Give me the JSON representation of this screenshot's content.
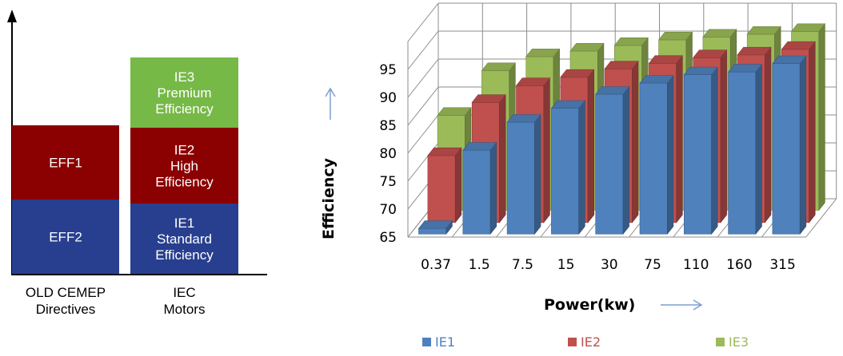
{
  "left_diagram": {
    "columns": [
      {
        "label_lines": [
          "OLD CEMEP",
          "Directives"
        ],
        "boxes": [
          {
            "lines": [
              "EFF2"
            ],
            "color": "#283f8f"
          },
          {
            "lines": [
              "EFF1"
            ],
            "color": "#8b0000"
          }
        ]
      },
      {
        "label_lines": [
          "IEC",
          "Motors"
        ],
        "boxes": [
          {
            "lines": [
              "IE1",
              "Standard",
              "Efficiency"
            ],
            "color": "#283f8f"
          },
          {
            "lines": [
              "IE2",
              "High",
              "Efficiency"
            ],
            "color": "#8b0000"
          },
          {
            "lines": [
              "IE3",
              "Premium",
              "Efficiency"
            ],
            "color": "#76b947"
          }
        ]
      }
    ]
  },
  "chart_data": {
    "type": "bar",
    "title": "",
    "xlabel": "Power(kw)",
    "ylabel": "Efficiency",
    "categories": [
      "0.37",
      "1.5",
      "7.5",
      "15",
      "30",
      "75",
      "110",
      "160",
      "315"
    ],
    "y_ticks": [
      "65",
      "70",
      "75",
      "80",
      "85",
      "90",
      "95"
    ],
    "ylim": [
      65,
      95
    ],
    "grid": true,
    "legend_position": "bottom",
    "series": [
      {
        "name": "IE1",
        "color": "#4f81bd",
        "values": [
          66,
          80,
          85,
          87.5,
          90,
          92,
          93.5,
          94,
          95.5
        ]
      },
      {
        "name": "IE2",
        "color": "#c0504d",
        "values": [
          77,
          86.5,
          89.5,
          91,
          92.5,
          93.5,
          94.5,
          95,
          96
        ]
      },
      {
        "name": "IE3",
        "color": "#9bbb59",
        "values": [
          82,
          90,
          92.5,
          93.5,
          94.5,
          95.5,
          96,
          96.5,
          97
        ]
      }
    ]
  }
}
